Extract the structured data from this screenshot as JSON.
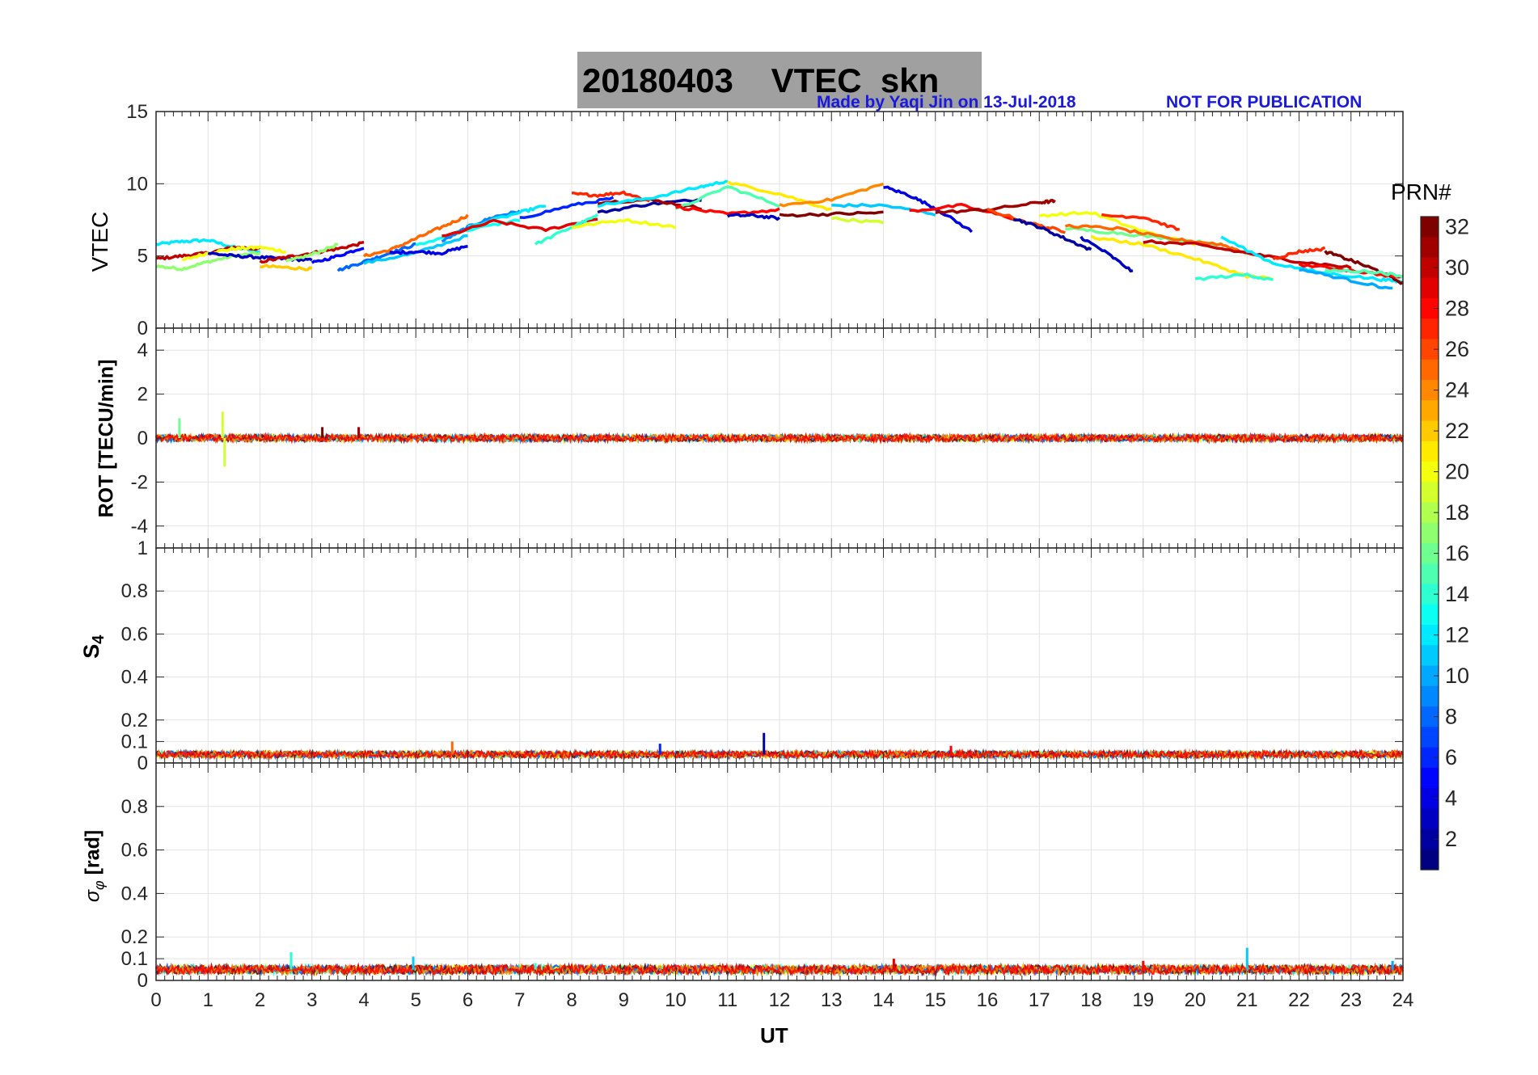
{
  "title": {
    "date": "20180403",
    "name": "VTEC  skn",
    "made_by": "Made by Yaqi Jin on 13-Jul-2018",
    "notice": "NOT FOR PUBLICATION"
  },
  "colorbar": {
    "title": "PRN#",
    "ticks": [
      2,
      4,
      6,
      8,
      10,
      12,
      14,
      16,
      18,
      20,
      22,
      24,
      26,
      28,
      30,
      32
    ],
    "range": [
      1,
      32
    ],
    "colormap": "jet"
  },
  "chart_data": [
    {
      "type": "line",
      "panel": "VTEC",
      "ylabel": "VTEC",
      "xlim": [
        0,
        24
      ],
      "ylim": [
        0,
        15
      ],
      "yticks": [
        0,
        5,
        10,
        15
      ],
      "grid": true,
      "series": [
        {
          "prn": 12,
          "x": [
            0,
            0.5,
            1,
            1.5,
            2
          ],
          "y": [
            5.8,
            6.0,
            6.1,
            5.6,
            5.3
          ]
        },
        {
          "prn": 17,
          "x": [
            0,
            0.5,
            1,
            1.5,
            2
          ],
          "y": [
            4.3,
            4.1,
            4.6,
            5.0,
            5.2
          ]
        },
        {
          "prn": 30,
          "x": [
            0,
            0.5,
            1,
            1.5,
            2
          ],
          "y": [
            4.8,
            5.0,
            5.2,
            5.6,
            5.5
          ]
        },
        {
          "prn": 20,
          "x": [
            0.5,
            1,
            1.5,
            2,
            2.5
          ],
          "y": [
            4.7,
            5.2,
            5.5,
            5.6,
            5.3
          ]
        },
        {
          "prn": 3,
          "x": [
            1,
            1.5,
            2,
            2.5,
            3
          ],
          "y": [
            5.2,
            5.0,
            4.9,
            4.8,
            4.7
          ]
        },
        {
          "prn": 30,
          "x": [
            2,
            2.5,
            3,
            3.5,
            4
          ],
          "y": [
            4.6,
            4.9,
            5.2,
            5.5,
            5.9
          ]
        },
        {
          "prn": 22,
          "x": [
            2,
            2.5,
            3
          ],
          "y": [
            4.3,
            4.2,
            4.1
          ]
        },
        {
          "prn": 17,
          "x": [
            2.5,
            3,
            3.5
          ],
          "y": [
            4.6,
            5.1,
            5.8
          ]
        },
        {
          "prn": 5,
          "x": [
            3,
            3.5,
            4
          ],
          "y": [
            4.5,
            5.0,
            5.6
          ]
        },
        {
          "prn": 8,
          "x": [
            3.5,
            4,
            4.5,
            5
          ],
          "y": [
            4.0,
            4.6,
            5.2,
            5.8
          ]
        },
        {
          "prn": 25,
          "x": [
            4,
            4.5,
            5,
            5.5,
            6
          ],
          "y": [
            5.0,
            5.4,
            6.2,
            7.0,
            7.8
          ]
        },
        {
          "prn": 11,
          "x": [
            4,
            5,
            6
          ],
          "y": [
            4.5,
            5.2,
            6.4
          ]
        },
        {
          "prn": 4,
          "x": [
            4.5,
            5,
            5.5,
            6
          ],
          "y": [
            5.2,
            5.3,
            5.2,
            5.7
          ]
        },
        {
          "prn": 13,
          "x": [
            5,
            6,
            7
          ],
          "y": [
            5.7,
            6.8,
            7.5
          ]
        },
        {
          "prn": 9,
          "x": [
            5.5,
            6,
            6.5,
            7
          ],
          "y": [
            6.0,
            7.0,
            7.7,
            8.1
          ]
        },
        {
          "prn": 12,
          "x": [
            6,
            7,
            7.5
          ],
          "y": [
            7.0,
            8.0,
            8.5
          ]
        },
        {
          "prn": 29,
          "x": [
            5.5,
            6.5,
            7.5,
            8.5
          ],
          "y": [
            6.3,
            7.4,
            6.8,
            7.6
          ]
        },
        {
          "prn": 14,
          "x": [
            7.3,
            8,
            8.5
          ],
          "y": [
            5.8,
            7.0,
            7.8
          ]
        },
        {
          "prn": 6,
          "x": [
            7,
            8,
            8.8
          ],
          "y": [
            7.6,
            8.5,
            9.0
          ]
        },
        {
          "prn": 27,
          "x": [
            8,
            8.5,
            9,
            9.5
          ],
          "y": [
            9.3,
            9.2,
            9.4,
            8.8
          ]
        },
        {
          "prn": 20,
          "x": [
            8,
            9,
            10
          ],
          "y": [
            7.0,
            7.5,
            7.0
          ]
        },
        {
          "prn": 2,
          "x": [
            8.5,
            9.5,
            10.5
          ],
          "y": [
            8.0,
            8.6,
            8.9
          ]
        },
        {
          "prn": 31,
          "x": [
            8.5,
            9.5,
            10.5
          ],
          "y": [
            8.7,
            8.9,
            8.3
          ]
        },
        {
          "prn": 12,
          "x": [
            8.5,
            9.5,
            10.5,
            11
          ],
          "y": [
            8.5,
            9.0,
            9.8,
            10.2
          ]
        },
        {
          "prn": 15,
          "x": [
            10,
            11,
            12
          ],
          "y": [
            8.2,
            9.8,
            8.5
          ]
        },
        {
          "prn": 21,
          "x": [
            11,
            12,
            13
          ],
          "y": [
            10.1,
            9.3,
            8.2
          ]
        },
        {
          "prn": 28,
          "x": [
            10,
            11,
            12
          ],
          "y": [
            8.4,
            7.9,
            8.2
          ]
        },
        {
          "prn": 3,
          "x": [
            11,
            11.5,
            12
          ],
          "y": [
            7.8,
            7.8,
            7.6
          ]
        },
        {
          "prn": 24,
          "x": [
            12,
            13,
            14
          ],
          "y": [
            8.5,
            8.9,
            10.0
          ]
        },
        {
          "prn": 32,
          "x": [
            12,
            13,
            14
          ],
          "y": [
            7.8,
            7.9,
            8.0
          ]
        },
        {
          "prn": 11,
          "x": [
            13,
            14,
            15
          ],
          "y": [
            8.5,
            8.5,
            7.9
          ]
        },
        {
          "prn": 19,
          "x": [
            13,
            14
          ],
          "y": [
            7.6,
            7.3
          ]
        },
        {
          "prn": 4,
          "x": [
            14,
            14.5,
            15,
            15.7
          ],
          "y": [
            9.8,
            9.2,
            8.3,
            6.7
          ]
        },
        {
          "prn": 28,
          "x": [
            14.5,
            15.5,
            16.5
          ],
          "y": [
            8.1,
            8.5,
            7.6
          ]
        },
        {
          "prn": 31,
          "x": [
            15,
            16,
            17,
            17.3
          ],
          "y": [
            8.0,
            8.2,
            8.7,
            8.8
          ]
        },
        {
          "prn": 26,
          "x": [
            16,
            17,
            17.5
          ],
          "y": [
            8.2,
            7.1,
            6.7
          ]
        },
        {
          "prn": 2,
          "x": [
            16.5,
            17,
            17.5,
            18
          ],
          "y": [
            7.6,
            7.0,
            6.2,
            5.4
          ]
        },
        {
          "prn": 20,
          "x": [
            17,
            18,
            19,
            20
          ],
          "y": [
            7.8,
            8.0,
            6.7,
            5.8
          ]
        },
        {
          "prn": 16,
          "x": [
            17.5,
            18.5,
            19.5,
            20.5
          ],
          "y": [
            6.9,
            6.6,
            6.2,
            5.8
          ]
        },
        {
          "prn": 27,
          "x": [
            18.2,
            19,
            19.7
          ],
          "y": [
            7.8,
            7.7,
            6.8
          ]
        },
        {
          "prn": 25,
          "x": [
            17.5,
            18.5,
            19.5,
            20.5,
            21
          ],
          "y": [
            7.1,
            6.9,
            6.2,
            5.8,
            5.2
          ]
        },
        {
          "prn": 21,
          "x": [
            18,
            19,
            20,
            21,
            21.5
          ],
          "y": [
            6.3,
            5.8,
            4.8,
            3.6,
            3.4
          ]
        },
        {
          "prn": 3,
          "x": [
            17.8,
            18.3,
            18.8
          ],
          "y": [
            6.3,
            5.2,
            3.9
          ]
        },
        {
          "prn": 14,
          "x": [
            20,
            21,
            21.5
          ],
          "y": [
            3.4,
            3.7,
            3.3
          ]
        },
        {
          "prn": 30,
          "x": [
            19,
            20,
            21,
            22,
            23
          ],
          "y": [
            6.0,
            5.8,
            5.2,
            4.6,
            4.2
          ]
        },
        {
          "prn": 12,
          "x": [
            20.5,
            21.5,
            22.5,
            23.5,
            24
          ],
          "y": [
            6.3,
            4.5,
            3.8,
            3.4,
            3.2
          ]
        },
        {
          "prn": 27,
          "x": [
            21.5,
            22,
            22.5
          ],
          "y": [
            4.8,
            5.3,
            5.5
          ]
        },
        {
          "prn": 10,
          "x": [
            22,
            23,
            23.8
          ],
          "y": [
            4.1,
            3.3,
            2.7
          ]
        },
        {
          "prn": 32,
          "x": [
            22.5,
            23,
            23.5,
            24
          ],
          "y": [
            5.3,
            4.7,
            4.0,
            3.1
          ]
        },
        {
          "prn": 28,
          "x": [
            22,
            23,
            24
          ],
          "y": [
            4.4,
            4.0,
            3.5
          ]
        },
        {
          "prn": 15,
          "x": [
            22.5,
            23.5,
            24
          ],
          "y": [
            4.0,
            3.9,
            3.6
          ]
        }
      ]
    },
    {
      "type": "line",
      "panel": "ROT",
      "ylabel": "ROT [TECU/min]",
      "xlim": [
        0,
        24
      ],
      "ylim": [
        -5,
        5
      ],
      "yticks": [
        -4,
        -2,
        0,
        2,
        4
      ],
      "grid": true,
      "baseline": 0,
      "noise_amplitude": 0.15,
      "spikes": [
        {
          "x": 0.45,
          "y": 0.9,
          "prn": 16
        },
        {
          "x": 1.28,
          "y": 1.2,
          "prn": 19
        },
        {
          "x": 1.32,
          "y": -1.3,
          "prn": 19
        },
        {
          "x": 3.2,
          "y": 0.5,
          "prn": 32
        },
        {
          "x": 3.9,
          "y": 0.5,
          "prn": 31
        }
      ]
    },
    {
      "type": "line",
      "panel": "S4",
      "ylabel": "S4",
      "xlim": [
        0,
        24
      ],
      "ylim": [
        0,
        1
      ],
      "yticks": [
        0,
        0.1,
        0.2,
        0.4,
        0.6,
        0.8,
        1
      ],
      "grid": true,
      "baseline": 0.04,
      "noise_amplitude": 0.015,
      "spikes": [
        {
          "x": 5.7,
          "y": 0.1,
          "prn": 25
        },
        {
          "x": 9.7,
          "y": 0.09,
          "prn": 6
        },
        {
          "x": 11.7,
          "y": 0.14,
          "prn": 2
        },
        {
          "x": 15.3,
          "y": 0.08,
          "prn": 28
        }
      ]
    },
    {
      "type": "line",
      "panel": "sigma_phi",
      "ylabel": "σφ [rad]",
      "xlim": [
        0,
        24
      ],
      "ylim": [
        0,
        1
      ],
      "yticks": [
        0,
        0.1,
        0.2,
        0.4,
        0.6,
        0.8
      ],
      "grid": true,
      "baseline": 0.05,
      "noise_amplitude": 0.02,
      "spikes": [
        {
          "x": 2.6,
          "y": 0.13,
          "prn": 14
        },
        {
          "x": 4.95,
          "y": 0.11,
          "prn": 11
        },
        {
          "x": 7.3,
          "y": 0.08,
          "prn": 14
        },
        {
          "x": 14.2,
          "y": 0.1,
          "prn": 29
        },
        {
          "x": 19,
          "y": 0.09,
          "prn": 28
        },
        {
          "x": 21,
          "y": 0.15,
          "prn": 11
        },
        {
          "x": 23.8,
          "y": 0.09,
          "prn": 10
        }
      ]
    }
  ],
  "axes": {
    "xlabel": "UT",
    "xticks": [
      0,
      1,
      2,
      3,
      4,
      5,
      6,
      7,
      8,
      9,
      10,
      11,
      12,
      13,
      14,
      15,
      16,
      17,
      18,
      19,
      20,
      21,
      22,
      23,
      24
    ],
    "panel_labels": {
      "vtec": "VTEC",
      "rot": "ROT [TECU/min]",
      "s4_main": "S",
      "s4_sub": "4",
      "sigma_main": "σ",
      "sigma_sub": "φ",
      "sigma_unit": "[rad]"
    }
  }
}
